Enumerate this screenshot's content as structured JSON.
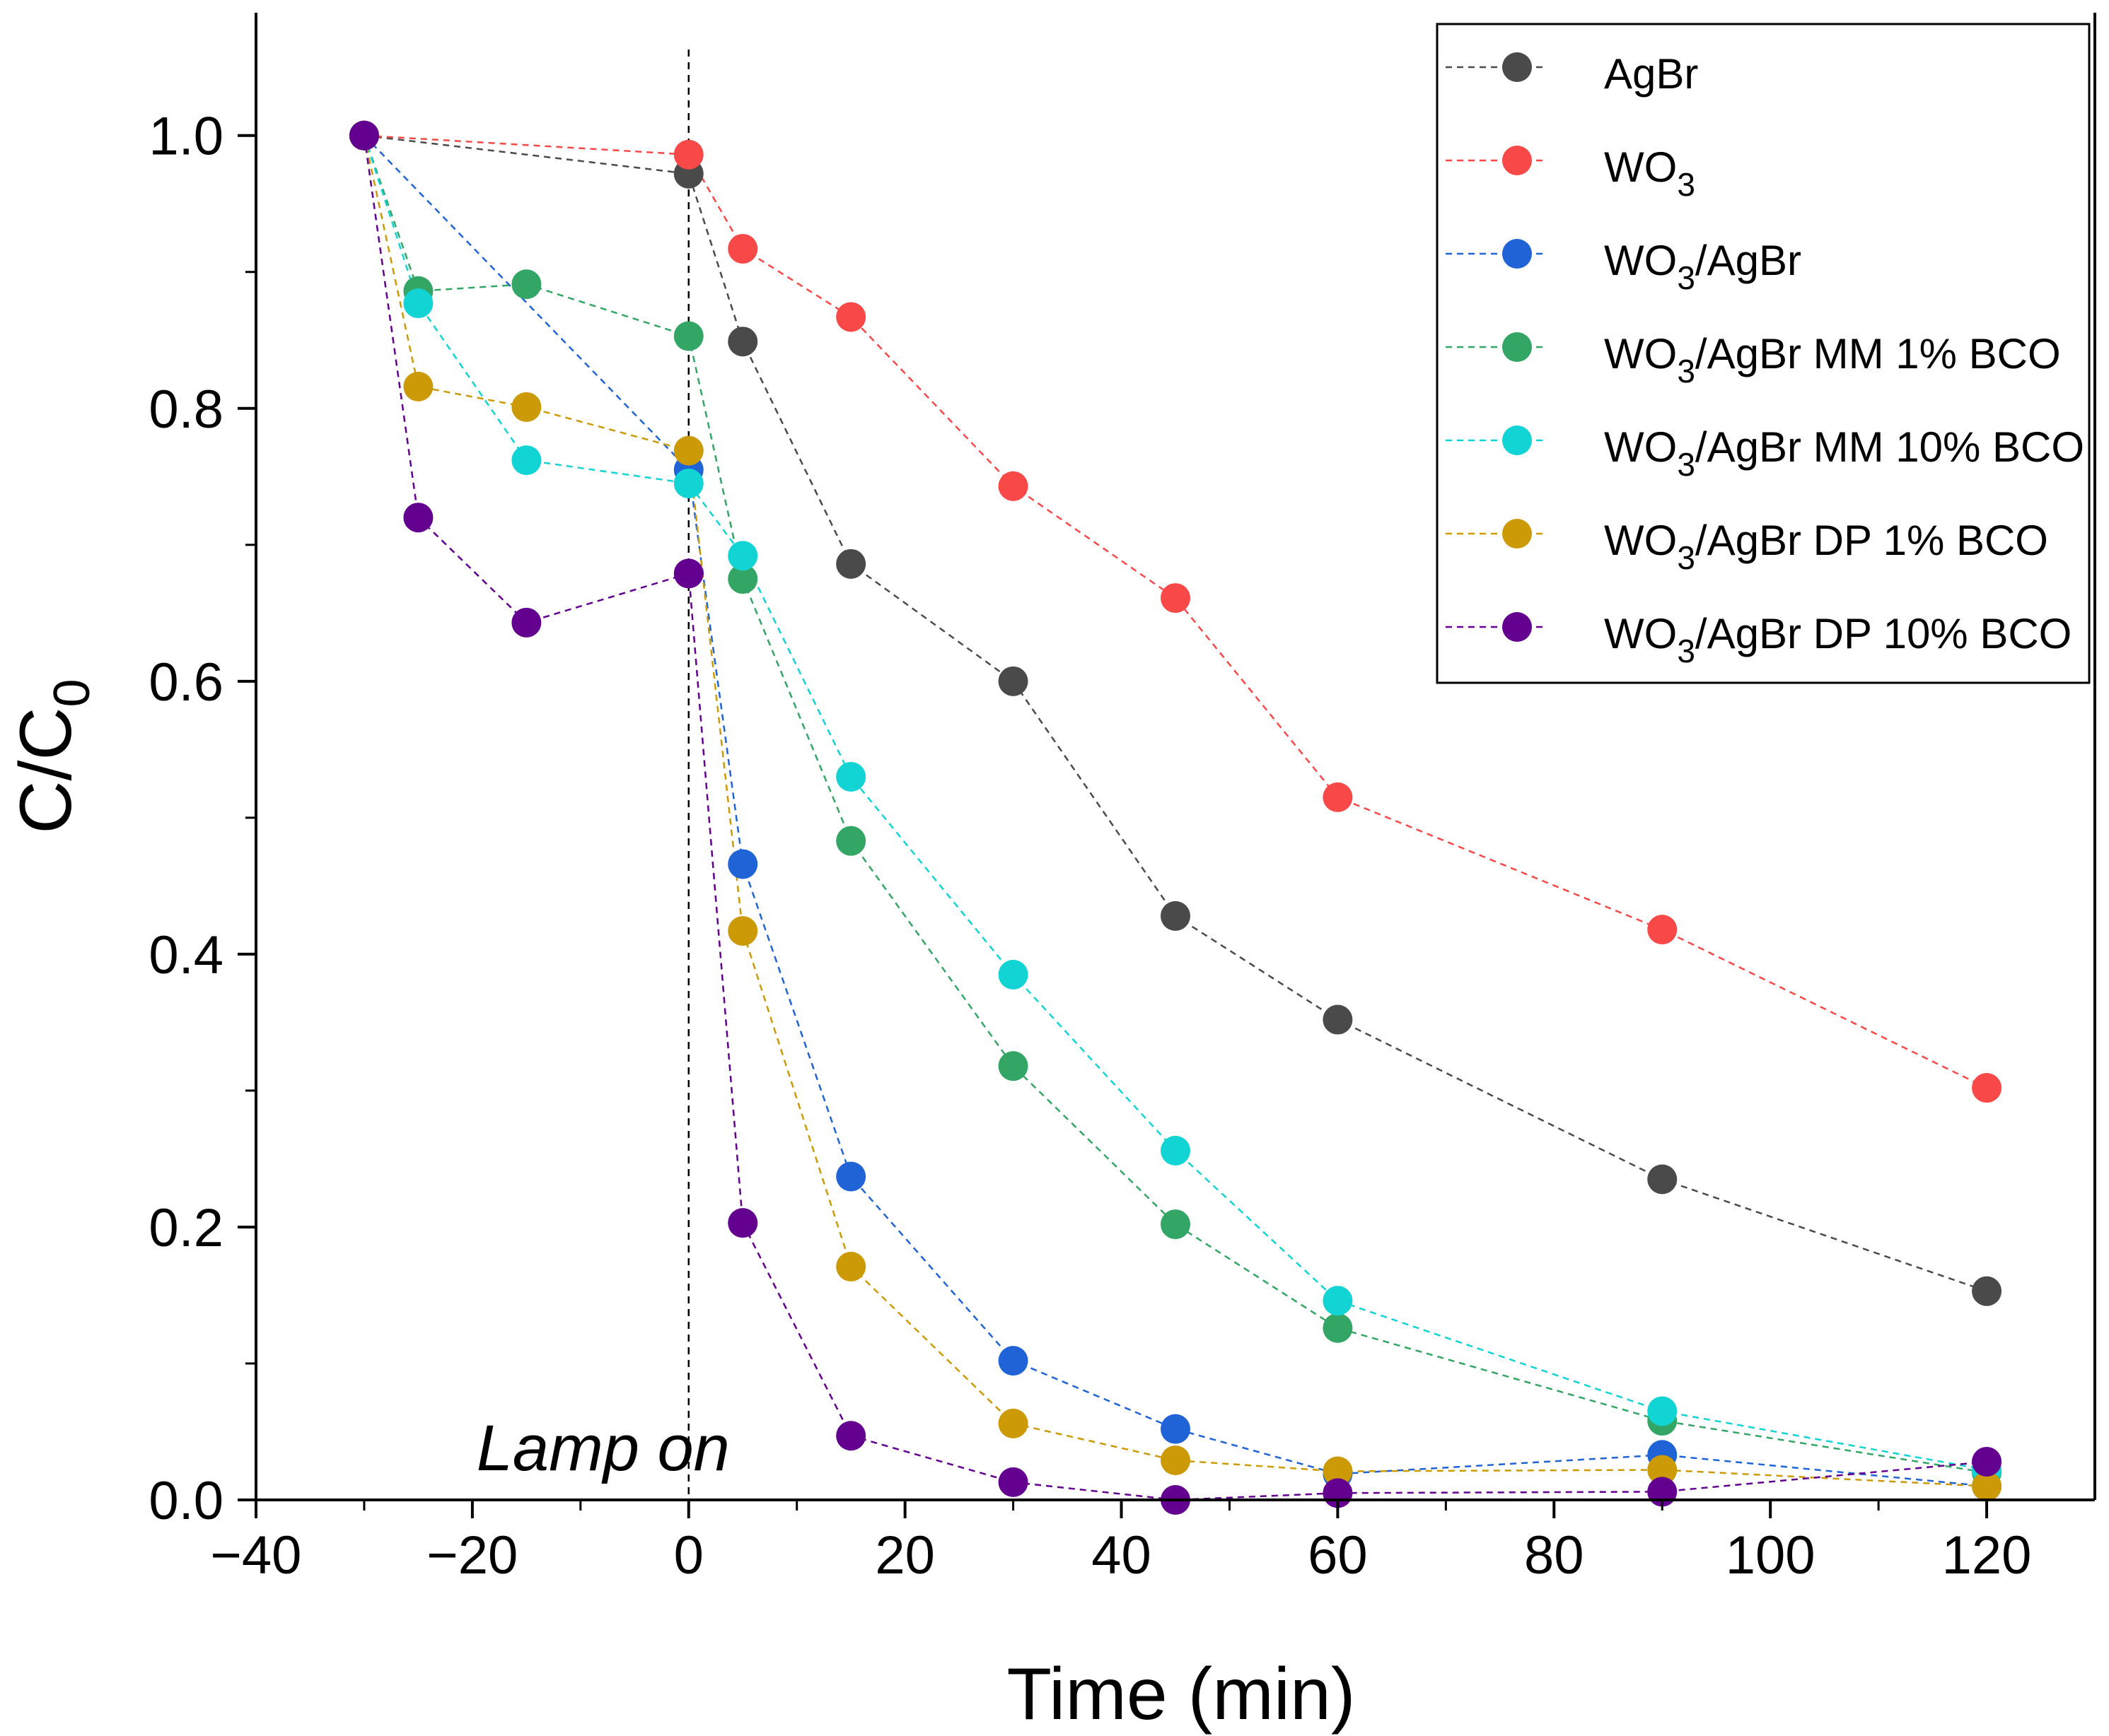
{
  "chart_data": {
    "type": "line",
    "title": "",
    "xlabel": "Time (min)",
    "ylabel": "C/C",
    "ylabel_sub": "0",
    "xlim": [
      -40,
      130
    ],
    "ylim": [
      0.0,
      1.09
    ],
    "x_ticks": [
      -40,
      -20,
      0,
      20,
      40,
      60,
      80,
      100,
      120
    ],
    "x_tick_labels": [
      "−40",
      "−20",
      "0",
      "20",
      "40",
      "60",
      "80",
      "100",
      "120"
    ],
    "y_ticks": [
      0.0,
      0.2,
      0.4,
      0.6,
      0.8,
      1.0
    ],
    "y_tick_labels": [
      "0.0",
      "0.2",
      "0.4",
      "0.6",
      "0.8",
      "1.0"
    ],
    "grid": false,
    "legend_position": "top-right",
    "annotations": [
      {
        "text": "Lamp on",
        "x": 0,
        "style": "italic",
        "vertical_line": true
      }
    ],
    "series": [
      {
        "name": "AgBr",
        "label_main": "AgBr",
        "label_sub": "",
        "label_rest": "",
        "color": "#4a4a4a",
        "line_color": "#4a4a4a",
        "x": [
          -30,
          0,
          5,
          15,
          30,
          45,
          60,
          90,
          120
        ],
        "y": [
          1.0,
          0.972,
          0.849,
          0.686,
          0.6,
          0.428,
          0.352,
          0.235,
          0.153
        ]
      },
      {
        "name": "WO3",
        "label_main": "WO",
        "label_sub": "3",
        "label_rest": "",
        "color": "#f84848",
        "line_color": "#f84848",
        "x": [
          -30,
          0,
          5,
          15,
          30,
          45,
          60,
          90,
          120
        ],
        "y": [
          1.0,
          0.986,
          0.917,
          0.867,
          0.743,
          0.661,
          0.515,
          0.418,
          0.302
        ]
      },
      {
        "name": "WO3/AgBr",
        "label_main": "WO",
        "label_sub": "3",
        "label_rest": "/AgBr",
        "color": "#1f63d6",
        "line_color": "#1f63d6",
        "x": [
          -30,
          0,
          5,
          15,
          30,
          45,
          60,
          90,
          120
        ],
        "y": [
          1.0,
          0.755,
          0.466,
          0.237,
          0.102,
          0.052,
          0.019,
          0.033,
          0.01
        ]
      },
      {
        "name": "WO3/AgBr MM 1% BCO",
        "label_main": "WO",
        "label_sub": "3",
        "label_rest": "/AgBr MM 1% BCO",
        "color": "#33a665",
        "line_color": "#33a665",
        "x": [
          -30,
          -25,
          -15,
          0,
          5,
          15,
          30,
          45,
          60,
          90,
          120
        ],
        "y": [
          1.0,
          0.886,
          0.891,
          0.853,
          0.675,
          0.483,
          0.318,
          0.202,
          0.126,
          0.058,
          0.02
        ]
      },
      {
        "name": "WO3/AgBr MM 10% BCO",
        "label_main": "WO",
        "label_sub": "3",
        "label_rest": "/AgBr MM 10% BCO",
        "color": "#12d4d4",
        "line_color": "#12d4d4",
        "x": [
          -30,
          -25,
          -15,
          0,
          5,
          15,
          30,
          45,
          60,
          90,
          120
        ],
        "y": [
          1.0,
          0.877,
          0.762,
          0.745,
          0.692,
          0.53,
          0.385,
          0.256,
          0.146,
          0.065,
          0.022
        ]
      },
      {
        "name": "WO3/AgBr DP 1% BCO",
        "label_main": "WO",
        "label_sub": "3",
        "label_rest": "/AgBr DP 1% BCO",
        "color": "#cc9a06",
        "line_color": "#cc9a06",
        "x": [
          -30,
          -25,
          -15,
          0,
          5,
          15,
          30,
          45,
          60,
          90,
          120
        ],
        "y": [
          1.0,
          0.816,
          0.801,
          0.769,
          0.417,
          0.171,
          0.056,
          0.029,
          0.021,
          0.022,
          0.01
        ]
      },
      {
        "name": "WO3/AgBr DP 10% BCO",
        "label_main": "WO",
        "label_sub": "3",
        "label_rest": "/AgBr DP 10% BCO",
        "color": "#63008f",
        "line_color": "#63008f",
        "x": [
          -30,
          -25,
          -15,
          0,
          5,
          15,
          30,
          45,
          60,
          90,
          120
        ],
        "y": [
          1.0,
          0.72,
          0.643,
          0.679,
          0.203,
          0.047,
          0.013,
          0.0,
          0.005,
          0.006,
          0.028
        ]
      }
    ]
  }
}
